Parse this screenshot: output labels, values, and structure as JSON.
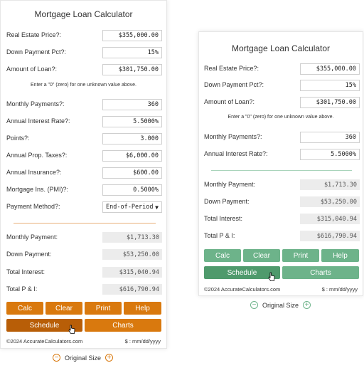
{
  "left": {
    "title": "Mortgage Loan Calculator",
    "fields": {
      "price_label": "Real Estate Price?:",
      "price_value": "$355,000.00",
      "down_label": "Down Payment Pct?:",
      "down_value": "15%",
      "loan_label": "Amount of Loan?:",
      "loan_value": "$301,750.00",
      "note": "Enter a \"0\" (zero) for one unknown value above.",
      "payments_label": "Monthly Payments?:",
      "payments_value": "360",
      "rate_label": "Annual Interest Rate?:",
      "rate_value": "5.5000%",
      "points_label": "Points?:",
      "points_value": "3.000",
      "taxes_label": "Annual Prop. Taxes?:",
      "taxes_value": "$6,000.00",
      "insurance_label": "Annual Insurance?:",
      "insurance_value": "$600.00",
      "pmi_label": "Mortgage Ins. (PMI)?:",
      "pmi_value": "0.5000%",
      "method_label": "Payment Method?:",
      "method_value": "End-of-Period"
    },
    "results": {
      "monthly_label": "Monthly Payment:",
      "monthly_value": "$1,713.30",
      "downpay_label": "Down Payment:",
      "downpay_value": "$53,250.00",
      "interest_label": "Total Interest:",
      "interest_value": "$315,040.94",
      "total_label": "Total P & I:",
      "total_value": "$616,790.94"
    },
    "buttons": {
      "calc": "Calc",
      "clear": "Clear",
      "print": "Print",
      "help": "Help",
      "schedule": "Schedule",
      "charts": "Charts"
    },
    "footer": {
      "copyright": "©2024 AccurateCalculators.com",
      "date_format": "$ : mm/dd/yyyy"
    },
    "size_label": "Original Size",
    "accent": "#d9790e",
    "accent_dark": "#b85e07"
  },
  "right": {
    "title": "Mortgage Loan Calculator",
    "fields": {
      "price_label": "Real Estate Price?:",
      "price_value": "$355,000.00",
      "down_label": "Down Payment Pct?:",
      "down_value": "15%",
      "loan_label": "Amount of Loan?:",
      "loan_value": "$301,750.00",
      "note": "Enter a \"0\" (zero) for one unknown value above.",
      "payments_label": "Monthly Payments?:",
      "payments_value": "360",
      "rate_label": "Annual Interest Rate?:",
      "rate_value": "5.5000%"
    },
    "results": {
      "monthly_label": "Monthly Payment:",
      "monthly_value": "$1,713.30",
      "downpay_label": "Down Payment:",
      "downpay_value": "$53,250.00",
      "interest_label": "Total Interest:",
      "interest_value": "$315,040.94",
      "total_label": "Total P & I:",
      "total_value": "$616,790.94"
    },
    "buttons": {
      "calc": "Calc",
      "clear": "Clear",
      "print": "Print",
      "help": "Help",
      "schedule": "Schedule",
      "charts": "Charts"
    },
    "footer": {
      "copyright": "©2024 AccurateCalculators.com",
      "date_format": "$ : mm/dd/yyyy"
    },
    "size_label": "Original Size",
    "accent": "#6db38a",
    "accent_dark": "#4f9a6c"
  }
}
